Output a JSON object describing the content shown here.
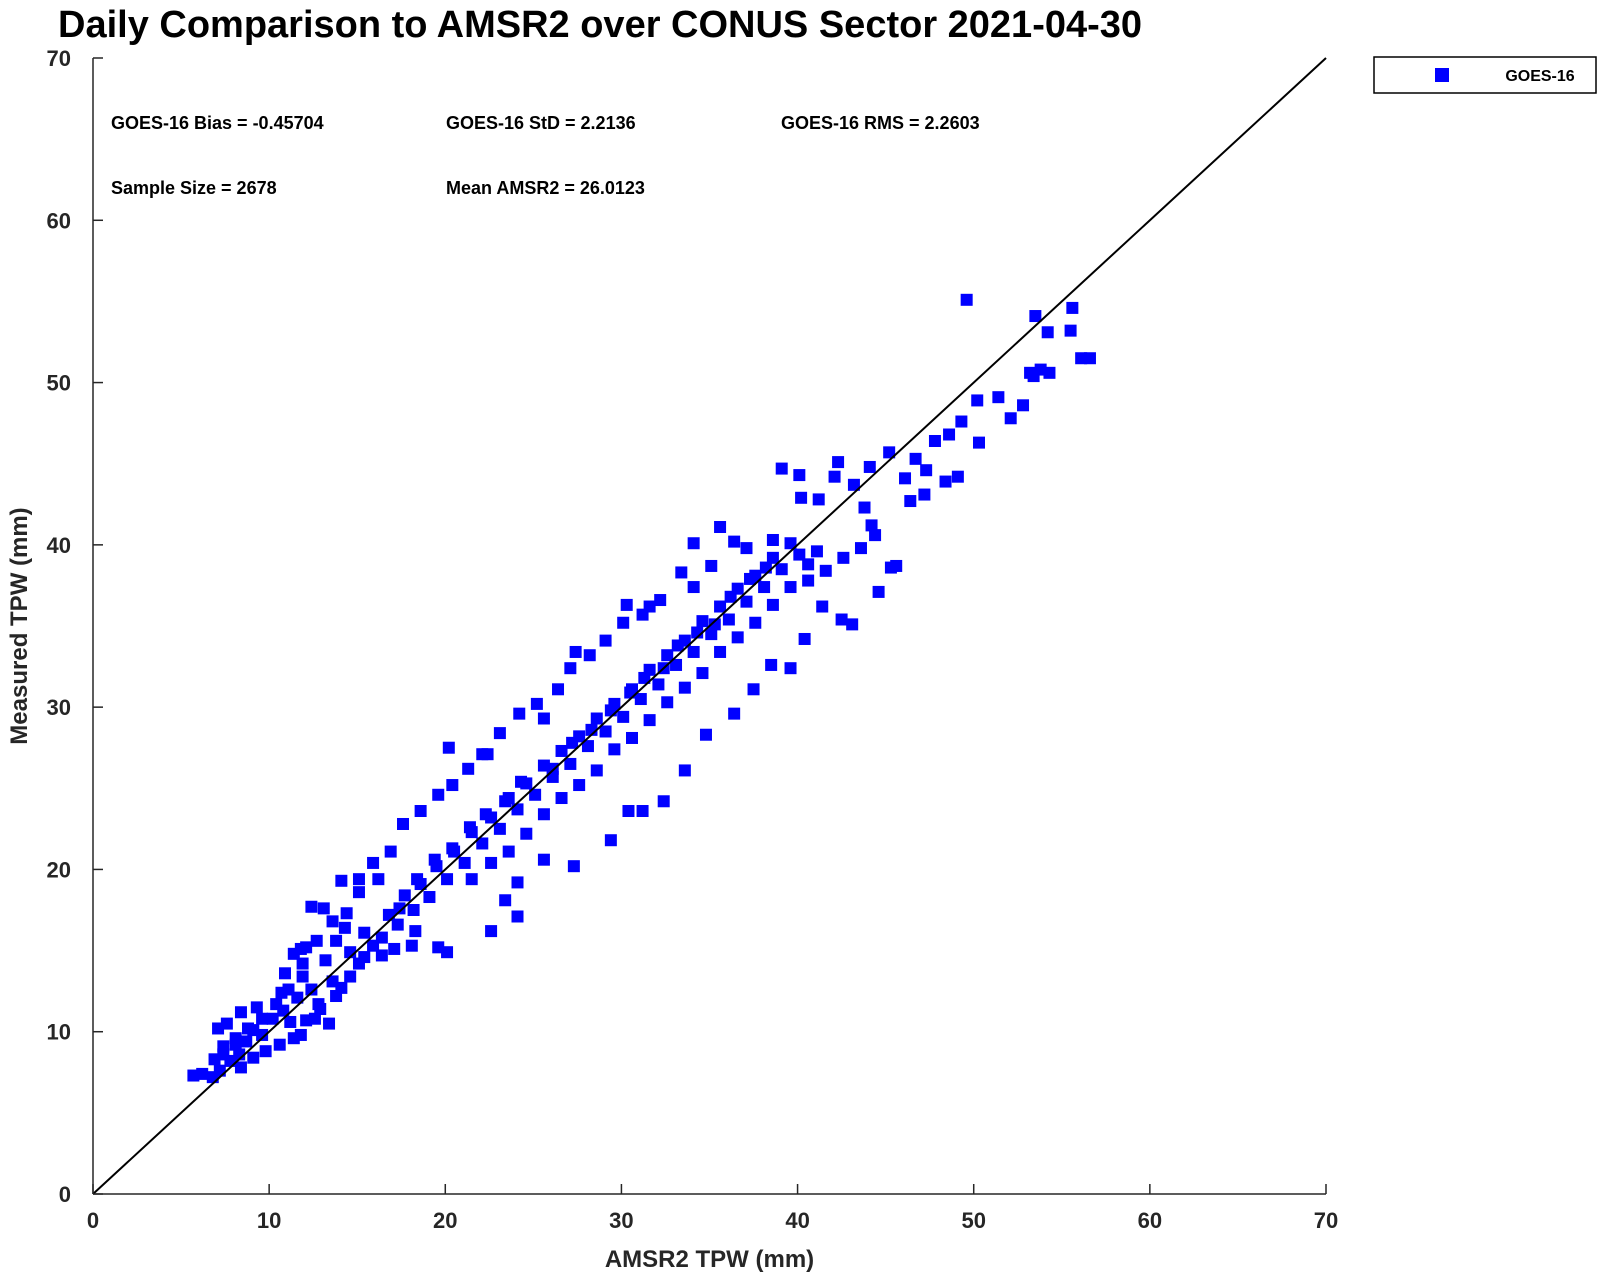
{
  "chart_data": {
    "type": "scatter",
    "title": "Daily Comparison to AMSR2 over CONUS Sector 2021-04-30",
    "xlabel": "AMSR2 TPW (mm)",
    "ylabel": "Measured TPW (mm)",
    "xlim": [
      0,
      70
    ],
    "ylim": [
      0,
      70
    ],
    "xticks": [
      "0",
      "10",
      "20",
      "30",
      "40",
      "50",
      "60",
      "70"
    ],
    "yticks": [
      "0",
      "10",
      "20",
      "30",
      "40",
      "50",
      "60",
      "70"
    ],
    "grid": false,
    "reference_line": "y = x",
    "legend": {
      "placement": "top-right-outside",
      "entries": [
        "GOES-16"
      ]
    },
    "annotations": [
      "GOES-16 Bias = -0.45704",
      "GOES-16 StD = 2.2136",
      "GOES-16 RMS = 2.2603",
      "Sample Size = 2678",
      "Mean AMSR2 = 26.0123"
    ],
    "series": [
      {
        "name": "GOES-16",
        "color": "#0000ff",
        "marker": "square",
        "points": [
          [
            5.7,
            7.3
          ],
          [
            6.2,
            7.4
          ],
          [
            6.8,
            7.2
          ],
          [
            7.2,
            7.6
          ],
          [
            6.9,
            8.3
          ],
          [
            7.4,
            9.1
          ],
          [
            7.8,
            8.2
          ],
          [
            8.3,
            8.6
          ],
          [
            7.1,
            10.2
          ],
          [
            7.6,
            10.5
          ],
          [
            8.1,
            9.6
          ],
          [
            8.7,
            9.4
          ],
          [
            9.1,
            10.1
          ],
          [
            9.6,
            9.8
          ],
          [
            8.4,
            11.2
          ],
          [
            9.3,
            11.5
          ],
          [
            10.2,
            10.8
          ],
          [
            10.8,
            11.3
          ],
          [
            11.2,
            10.6
          ],
          [
            10.7,
            12.4
          ],
          [
            11.6,
            12.1
          ],
          [
            10.9,
            13.6
          ],
          [
            11.4,
            14.8
          ],
          [
            11.9,
            13.4
          ],
          [
            12.4,
            12.6
          ],
          [
            12.8,
            11.7
          ],
          [
            12.1,
            15.2
          ],
          [
            13.2,
            14.4
          ],
          [
            13.6,
            13.1
          ],
          [
            14.1,
            12.7
          ],
          [
            13.8,
            15.6
          ],
          [
            14.6,
            14.9
          ],
          [
            15.1,
            14.2
          ],
          [
            12.6,
            10.8
          ],
          [
            11.8,
            9.8
          ],
          [
            13.4,
            10.5
          ],
          [
            14.3,
            16.4
          ],
          [
            15.4,
            16.1
          ],
          [
            15.9,
            15.3
          ],
          [
            16.4,
            14.7
          ],
          [
            16.8,
            17.2
          ],
          [
            17.3,
            16.6
          ],
          [
            17.7,
            18.4
          ],
          [
            18.2,
            17.5
          ],
          [
            18.6,
            19.1
          ],
          [
            19.1,
            18.3
          ],
          [
            19.5,
            20.2
          ],
          [
            20.1,
            19.4
          ],
          [
            20.5,
            21.1
          ],
          [
            21.1,
            20.4
          ],
          [
            21.5,
            22.3
          ],
          [
            22.1,
            21.6
          ],
          [
            22.6,
            23.2
          ],
          [
            23.1,
            22.5
          ],
          [
            23.6,
            24.4
          ],
          [
            24.1,
            23.7
          ],
          [
            24.6,
            25.3
          ],
          [
            25.1,
            24.6
          ],
          [
            25.6,
            26.4
          ],
          [
            26.1,
            25.7
          ],
          [
            26.6,
            27.3
          ],
          [
            27.1,
            26.5
          ],
          [
            27.6,
            28.2
          ],
          [
            28.1,
            27.6
          ],
          [
            28.6,
            29.3
          ],
          [
            29.1,
            28.5
          ],
          [
            29.6,
            30.2
          ],
          [
            30.1,
            29.4
          ],
          [
            30.6,
            31.1
          ],
          [
            31.1,
            30.5
          ],
          [
            31.6,
            32.3
          ],
          [
            32.1,
            31.4
          ],
          [
            32.6,
            33.2
          ],
          [
            33.1,
            32.6
          ],
          [
            33.6,
            34.1
          ],
          [
            34.1,
            33.4
          ],
          [
            34.6,
            35.3
          ],
          [
            35.1,
            34.5
          ],
          [
            35.6,
            36.2
          ],
          [
            36.1,
            35.4
          ],
          [
            36.6,
            37.3
          ],
          [
            37.1,
            36.5
          ],
          [
            37.6,
            38.1
          ],
          [
            38.1,
            37.4
          ],
          [
            38.6,
            39.2
          ],
          [
            39.1,
            38.5
          ],
          [
            39.6,
            40.1
          ],
          [
            40.1,
            39.4
          ],
          [
            40.6,
            38.8
          ],
          [
            41.1,
            39.6
          ],
          [
            16.2,
            19.4
          ],
          [
            15.1,
            19.4
          ],
          [
            14.1,
            19.3
          ],
          [
            13.1,
            17.6
          ],
          [
            12.4,
            17.7
          ],
          [
            11.8,
            15.1
          ],
          [
            20.2,
            27.5
          ],
          [
            22.1,
            27.1
          ],
          [
            25.6,
            29.3
          ],
          [
            27.4,
            33.4
          ],
          [
            30.3,
            36.3
          ],
          [
            31.6,
            36.2
          ],
          [
            34.1,
            37.4
          ],
          [
            35.6,
            41.1
          ],
          [
            35.1,
            38.7
          ],
          [
            39.1,
            44.7
          ],
          [
            40.1,
            44.3
          ],
          [
            42.3,
            45.1
          ],
          [
            44.1,
            44.8
          ],
          [
            45.2,
            45.7
          ],
          [
            19.6,
            15.2
          ],
          [
            20.1,
            14.9
          ],
          [
            18.1,
            15.3
          ],
          [
            17.1,
            15.1
          ],
          [
            22.6,
            16.2
          ],
          [
            24.1,
            17.1
          ],
          [
            23.4,
            18.1
          ],
          [
            24.1,
            19.2
          ],
          [
            25.6,
            20.6
          ],
          [
            27.3,
            20.2
          ],
          [
            29.4,
            21.8
          ],
          [
            30.4,
            23.6
          ],
          [
            31.2,
            23.6
          ],
          [
            32.4,
            24.2
          ],
          [
            33.6,
            26.1
          ],
          [
            34.8,
            28.3
          ],
          [
            36.4,
            29.6
          ],
          [
            37.5,
            31.1
          ],
          [
            38.5,
            32.6
          ],
          [
            39.6,
            32.4
          ],
          [
            40.4,
            34.2
          ],
          [
            41.4,
            36.2
          ],
          [
            42.5,
            35.4
          ],
          [
            43.1,
            35.1
          ],
          [
            44.6,
            37.1
          ],
          [
            45.3,
            38.6
          ],
          [
            46.4,
            42.7
          ],
          [
            47.2,
            43.1
          ],
          [
            48.4,
            43.9
          ],
          [
            49.1,
            44.2
          ],
          [
            46.1,
            44.1
          ],
          [
            47.8,
            46.4
          ],
          [
            48.6,
            46.8
          ],
          [
            49.3,
            47.6
          ],
          [
            50.2,
            48.9
          ],
          [
            51.4,
            49.1
          ],
          [
            52.1,
            47.8
          ],
          [
            52.8,
            48.6
          ],
          [
            53.4,
            50.4
          ],
          [
            53.8,
            50.8
          ],
          [
            54.2,
            53.1
          ],
          [
            53.5,
            54.1
          ],
          [
            55.6,
            54.6
          ],
          [
            55.5,
            53.2
          ],
          [
            56.1,
            51.5
          ],
          [
            56.6,
            51.5
          ],
          [
            53.2,
            50.6
          ],
          [
            54.3,
            50.6
          ],
          [
            49.6,
            55.1
          ],
          [
            50.3,
            46.3
          ],
          [
            47.3,
            44.6
          ],
          [
            46.7,
            45.3
          ],
          [
            43.2,
            43.7
          ],
          [
            42.1,
            44.2
          ],
          [
            41.2,
            42.8
          ],
          [
            40.2,
            42.9
          ],
          [
            38.6,
            40.3
          ],
          [
            37.1,
            39.8
          ],
          [
            36.4,
            40.2
          ],
          [
            34.1,
            40.1
          ],
          [
            33.4,
            38.3
          ],
          [
            32.2,
            36.6
          ],
          [
            31.2,
            35.7
          ],
          [
            30.1,
            35.2
          ],
          [
            29.1,
            34.1
          ],
          [
            28.2,
            33.2
          ],
          [
            27.1,
            32.4
          ],
          [
            26.4,
            31.1
          ],
          [
            25.2,
            30.2
          ],
          [
            24.2,
            29.6
          ],
          [
            23.1,
            28.4
          ],
          [
            22.4,
            27.1
          ],
          [
            21.3,
            26.2
          ],
          [
            20.4,
            25.2
          ],
          [
            19.6,
            24.6
          ],
          [
            18.6,
            23.6
          ],
          [
            17.6,
            22.8
          ],
          [
            16.9,
            21.1
          ],
          [
            15.9,
            20.4
          ],
          [
            15.1,
            18.6
          ],
          [
            14.4,
            17.3
          ],
          [
            13.6,
            16.8
          ],
          [
            12.7,
            15.6
          ],
          [
            11.9,
            14.2
          ],
          [
            11.1,
            12.6
          ],
          [
            10.4,
            11.7
          ],
          [
            9.6,
            10.8
          ],
          [
            8.8,
            10.2
          ],
          [
            8.1,
            9.2
          ],
          [
            7.4,
            8.6
          ],
          [
            21.5,
            19.4
          ],
          [
            22.6,
            20.4
          ],
          [
            23.6,
            21.1
          ],
          [
            24.6,
            22.2
          ],
          [
            25.6,
            23.4
          ],
          [
            26.6,
            24.4
          ],
          [
            27.6,
            25.2
          ],
          [
            28.6,
            26.1
          ],
          [
            29.6,
            27.4
          ],
          [
            30.6,
            28.1
          ],
          [
            31.6,
            29.2
          ],
          [
            32.6,
            30.3
          ],
          [
            33.6,
            31.2
          ],
          [
            34.6,
            32.1
          ],
          [
            35.6,
            33.4
          ],
          [
            36.6,
            34.3
          ],
          [
            37.6,
            35.2
          ],
          [
            38.6,
            36.3
          ],
          [
            39.6,
            37.4
          ],
          [
            40.6,
            37.8
          ],
          [
            41.6,
            38.4
          ],
          [
            42.6,
            39.2
          ],
          [
            43.6,
            39.8
          ],
          [
            44.4,
            40.6
          ],
          [
            45.6,
            38.7
          ],
          [
            44.2,
            41.2
          ],
          [
            43.8,
            42.3
          ],
          [
            18.3,
            16.2
          ],
          [
            17.4,
            17.6
          ],
          [
            16.4,
            15.8
          ],
          [
            15.4,
            14.6
          ],
          [
            14.6,
            13.4
          ],
          [
            13.8,
            12.2
          ],
          [
            12.9,
            11.4
          ],
          [
            12.1,
            10.7
          ],
          [
            11.4,
            9.6
          ],
          [
            10.6,
            9.2
          ],
          [
            9.8,
            8.8
          ],
          [
            9.1,
            8.4
          ],
          [
            8.4,
            7.8
          ],
          [
            26.1,
            26.2
          ],
          [
            27.2,
            27.8
          ],
          [
            28.3,
            28.6
          ],
          [
            29.4,
            29.8
          ],
          [
            30.5,
            30.9
          ],
          [
            31.3,
            31.8
          ],
          [
            32.4,
            32.4
          ],
          [
            33.2,
            33.8
          ],
          [
            34.3,
            34.6
          ],
          [
            35.3,
            35.1
          ],
          [
            36.2,
            36.8
          ],
          [
            37.3,
            37.9
          ],
          [
            38.2,
            38.6
          ],
          [
            24.3,
            25.4
          ],
          [
            23.4,
            24.2
          ],
          [
            22.3,
            23.4
          ],
          [
            21.4,
            22.6
          ],
          [
            20.4,
            21.3
          ],
          [
            19.4,
            20.6
          ],
          [
            18.4,
            19.4
          ]
        ]
      }
    ]
  }
}
